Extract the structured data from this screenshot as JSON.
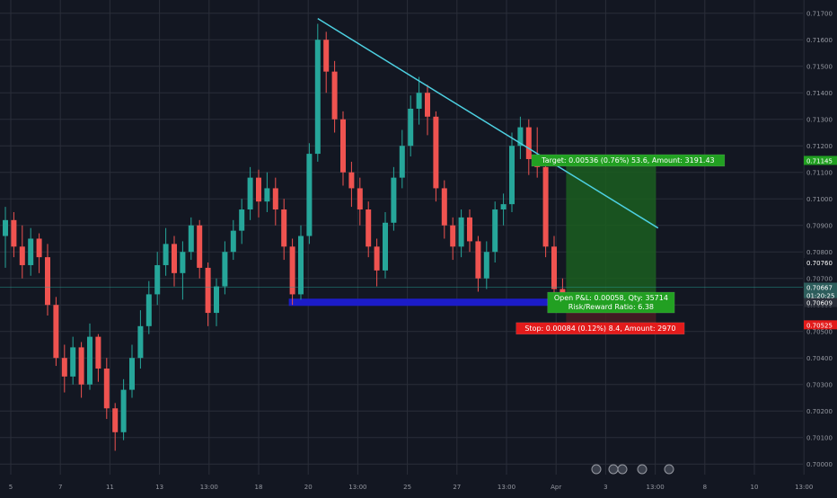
{
  "colors": {
    "background": "#131722",
    "grid": "#2a2e39",
    "up": "#26a69a",
    "down": "#ef5350",
    "trendline": "#4dd0e1",
    "support": "#1c1cc8",
    "target_zone": "#1b5e20",
    "stop_zone": "#4a1c22",
    "target_label": "#22a022",
    "stop_label": "#e31b1b",
    "price_tag": "#2d5d5c",
    "axis_text": "#9598a1"
  },
  "price_axis": {
    "ticks": [
      "0.71700",
      "0.71600",
      "0.71500",
      "0.71400",
      "0.71300",
      "0.71200",
      "0.71100",
      "0.71000",
      "0.70900",
      "0.70800",
      "0.70700",
      "0.70600",
      "0.70500",
      "0.70400",
      "0.70300",
      "0.70200",
      "0.70100",
      "0.70000"
    ],
    "range": [
      0.6996,
      0.7175
    ]
  },
  "time_axis": {
    "ticks": [
      "5",
      "7",
      "11",
      "13",
      "13:00",
      "18",
      "20",
      "13:00",
      "25",
      "27",
      "13:00",
      "Apr",
      "3",
      "13:00",
      "8",
      "10",
      "13:00"
    ]
  },
  "position": {
    "entry": 0.70609,
    "target_price": 0.71145,
    "stop_price": 0.70525,
    "target_label": "Target: 0.00536 (0.76%) 53.6, Amount: 3191.43",
    "stop_label": "Stop: 0.00084 (0.12%) 8.4, Amount: 2970",
    "pnl_label": "Open P&L: 0.00058, Qty: 35714",
    "rr_label": "Risk/Reward Ratio: 6.38"
  },
  "price_tags": [
    {
      "label": "0.71145",
      "price": 0.71145,
      "color": "#22a022"
    },
    {
      "label": "0.70760",
      "price": 0.7076,
      "color": "#131722"
    },
    {
      "label": "0.70667",
      "price": 0.70667,
      "color": "#2d5d5c"
    },
    {
      "label": "01:20:25",
      "price": 0.70636,
      "color": "#2d5d5c"
    },
    {
      "label": "0.70609",
      "price": 0.70609,
      "color": "#2a2e39"
    },
    {
      "label": "0.70525",
      "price": 0.70525,
      "color": "#e31b1b"
    }
  ],
  "chart_data": {
    "type": "candlestick",
    "symbol_quote_scale": "price",
    "ylim": [
      0.6996,
      0.7175
    ],
    "candles": [
      {
        "o": 0.7086,
        "h": 0.7097,
        "l": 0.7074,
        "c": 0.7092
      },
      {
        "o": 0.7092,
        "h": 0.7095,
        "l": 0.7078,
        "c": 0.7082
      },
      {
        "o": 0.7082,
        "h": 0.709,
        "l": 0.707,
        "c": 0.7075
      },
      {
        "o": 0.7075,
        "h": 0.7089,
        "l": 0.7071,
        "c": 0.7085
      },
      {
        "o": 0.7085,
        "h": 0.7087,
        "l": 0.7072,
        "c": 0.7078
      },
      {
        "o": 0.7078,
        "h": 0.7083,
        "l": 0.7056,
        "c": 0.706
      },
      {
        "o": 0.706,
        "h": 0.7063,
        "l": 0.7037,
        "c": 0.704
      },
      {
        "o": 0.704,
        "h": 0.7045,
        "l": 0.7027,
        "c": 0.7033
      },
      {
        "o": 0.7033,
        "h": 0.7048,
        "l": 0.703,
        "c": 0.7044
      },
      {
        "o": 0.7044,
        "h": 0.7046,
        "l": 0.7025,
        "c": 0.703
      },
      {
        "o": 0.703,
        "h": 0.7053,
        "l": 0.7028,
        "c": 0.7048
      },
      {
        "o": 0.7048,
        "h": 0.7049,
        "l": 0.7031,
        "c": 0.7036
      },
      {
        "o": 0.7036,
        "h": 0.704,
        "l": 0.7017,
        "c": 0.7021
      },
      {
        "o": 0.7021,
        "h": 0.7023,
        "l": 0.7005,
        "c": 0.7012
      },
      {
        "o": 0.7012,
        "h": 0.7032,
        "l": 0.7009,
        "c": 0.7028
      },
      {
        "o": 0.7028,
        "h": 0.7045,
        "l": 0.7025,
        "c": 0.704
      },
      {
        "o": 0.704,
        "h": 0.7058,
        "l": 0.7036,
        "c": 0.7052
      },
      {
        "o": 0.7052,
        "h": 0.7069,
        "l": 0.7049,
        "c": 0.7064
      },
      {
        "o": 0.7064,
        "h": 0.708,
        "l": 0.706,
        "c": 0.7075
      },
      {
        "o": 0.7075,
        "h": 0.7089,
        "l": 0.7071,
        "c": 0.7083
      },
      {
        "o": 0.7083,
        "h": 0.7086,
        "l": 0.7067,
        "c": 0.7072
      },
      {
        "o": 0.7072,
        "h": 0.7084,
        "l": 0.7062,
        "c": 0.708
      },
      {
        "o": 0.708,
        "h": 0.7093,
        "l": 0.7077,
        "c": 0.709
      },
      {
        "o": 0.709,
        "h": 0.7092,
        "l": 0.707,
        "c": 0.7074
      },
      {
        "o": 0.7074,
        "h": 0.7076,
        "l": 0.7052,
        "c": 0.7057
      },
      {
        "o": 0.7057,
        "h": 0.707,
        "l": 0.7052,
        "c": 0.7067
      },
      {
        "o": 0.7067,
        "h": 0.7084,
        "l": 0.7064,
        "c": 0.708
      },
      {
        "o": 0.708,
        "h": 0.7092,
        "l": 0.7077,
        "c": 0.7088
      },
      {
        "o": 0.7088,
        "h": 0.71,
        "l": 0.7083,
        "c": 0.7096
      },
      {
        "o": 0.7096,
        "h": 0.7112,
        "l": 0.7092,
        "c": 0.7108
      },
      {
        "o": 0.7108,
        "h": 0.7111,
        "l": 0.7093,
        "c": 0.7099
      },
      {
        "o": 0.7099,
        "h": 0.711,
        "l": 0.7095,
        "c": 0.7104
      },
      {
        "o": 0.7104,
        "h": 0.7108,
        "l": 0.709,
        "c": 0.7096
      },
      {
        "o": 0.7096,
        "h": 0.71,
        "l": 0.7077,
        "c": 0.7082
      },
      {
        "o": 0.7082,
        "h": 0.7085,
        "l": 0.706,
        "c": 0.7064
      },
      {
        "o": 0.7064,
        "h": 0.709,
        "l": 0.7062,
        "c": 0.7086
      },
      {
        "o": 0.7086,
        "h": 0.7121,
        "l": 0.7083,
        "c": 0.7117
      },
      {
        "o": 0.7117,
        "h": 0.7166,
        "l": 0.7114,
        "c": 0.716
      },
      {
        "o": 0.716,
        "h": 0.7163,
        "l": 0.714,
        "c": 0.7148
      },
      {
        "o": 0.7148,
        "h": 0.7152,
        "l": 0.7125,
        "c": 0.713
      },
      {
        "o": 0.713,
        "h": 0.7133,
        "l": 0.7105,
        "c": 0.711
      },
      {
        "o": 0.711,
        "h": 0.7114,
        "l": 0.7097,
        "c": 0.7104
      },
      {
        "o": 0.7104,
        "h": 0.7108,
        "l": 0.709,
        "c": 0.7096
      },
      {
        "o": 0.7096,
        "h": 0.7099,
        "l": 0.7078,
        "c": 0.7082
      },
      {
        "o": 0.7082,
        "h": 0.7085,
        "l": 0.7067,
        "c": 0.7073
      },
      {
        "o": 0.7073,
        "h": 0.7095,
        "l": 0.707,
        "c": 0.7091
      },
      {
        "o": 0.7091,
        "h": 0.7112,
        "l": 0.7088,
        "c": 0.7108
      },
      {
        "o": 0.7108,
        "h": 0.7126,
        "l": 0.7104,
        "c": 0.712
      },
      {
        "o": 0.712,
        "h": 0.7139,
        "l": 0.7116,
        "c": 0.7134
      },
      {
        "o": 0.7134,
        "h": 0.7146,
        "l": 0.7128,
        "c": 0.714
      },
      {
        "o": 0.714,
        "h": 0.7143,
        "l": 0.7124,
        "c": 0.7131
      },
      {
        "o": 0.7131,
        "h": 0.7133,
        "l": 0.7099,
        "c": 0.7104
      },
      {
        "o": 0.7104,
        "h": 0.7107,
        "l": 0.7085,
        "c": 0.709
      },
      {
        "o": 0.709,
        "h": 0.7093,
        "l": 0.7077,
        "c": 0.7082
      },
      {
        "o": 0.7082,
        "h": 0.7096,
        "l": 0.7078,
        "c": 0.7093
      },
      {
        "o": 0.7093,
        "h": 0.7096,
        "l": 0.708,
        "c": 0.7084
      },
      {
        "o": 0.7084,
        "h": 0.7086,
        "l": 0.7065,
        "c": 0.707
      },
      {
        "o": 0.707,
        "h": 0.7084,
        "l": 0.7066,
        "c": 0.708
      },
      {
        "o": 0.708,
        "h": 0.7099,
        "l": 0.7076,
        "c": 0.7096
      },
      {
        "o": 0.7096,
        "h": 0.7102,
        "l": 0.709,
        "c": 0.7098
      },
      {
        "o": 0.7098,
        "h": 0.7125,
        "l": 0.7095,
        "c": 0.712
      },
      {
        "o": 0.712,
        "h": 0.7131,
        "l": 0.7115,
        "c": 0.7127
      },
      {
        "o": 0.7127,
        "h": 0.713,
        "l": 0.7109,
        "c": 0.7115
      },
      {
        "o": 0.7115,
        "h": 0.7127,
        "l": 0.7108,
        "c": 0.7112
      },
      {
        "o": 0.7112,
        "h": 0.7115,
        "l": 0.7078,
        "c": 0.7082
      },
      {
        "o": 0.7082,
        "h": 0.7086,
        "l": 0.7062,
        "c": 0.7066
      },
      {
        "o": 0.7066,
        "h": 0.707,
        "l": 0.7058,
        "c": 0.7064
      }
    ],
    "trendline": {
      "from": {
        "candle": 37,
        "price": 0.7168
      },
      "to": {
        "candle": 72,
        "price": 0.7089
      }
    },
    "support": {
      "price": 0.7061,
      "from_candle": 34,
      "to_candle": 66
    }
  }
}
